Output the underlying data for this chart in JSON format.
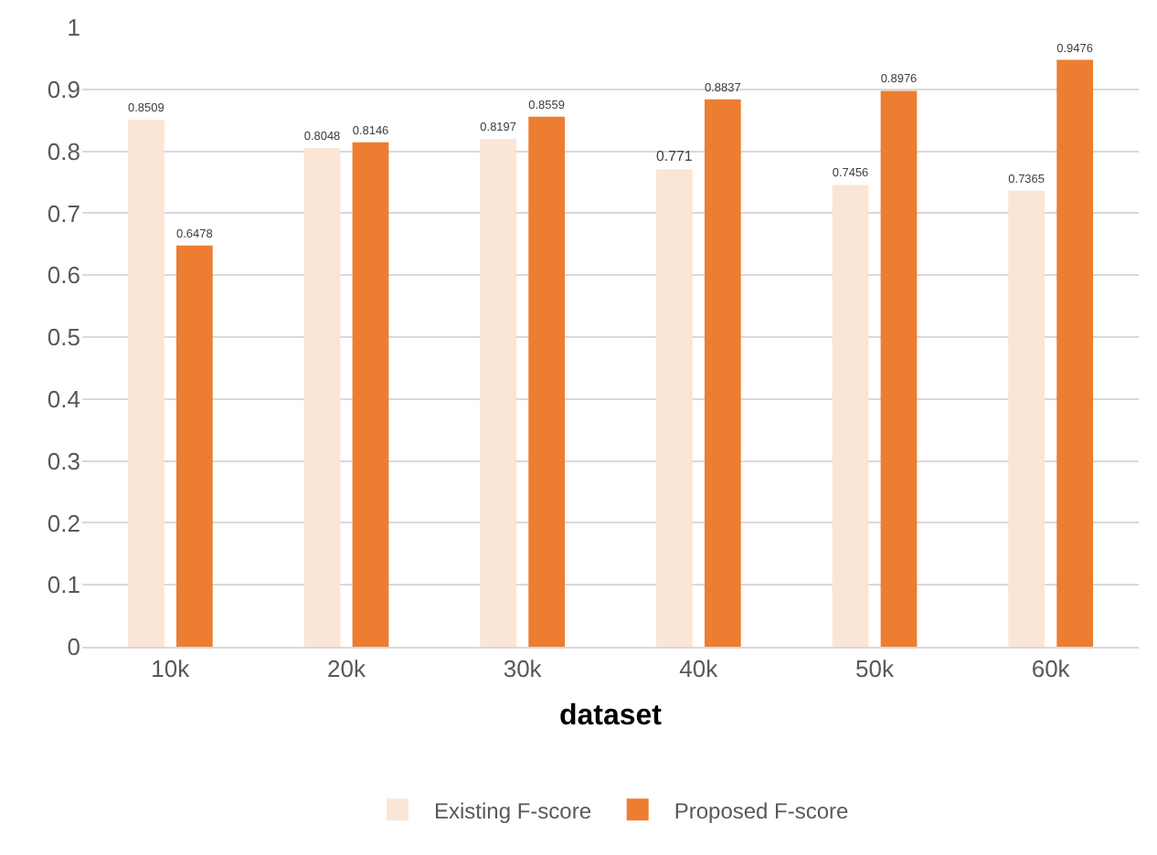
{
  "chart_data": {
    "type": "bar",
    "xlabel": "dataset",
    "categories": [
      "10k",
      "20k",
      "30k",
      "40k",
      "50k",
      "60k"
    ],
    "series": [
      {
        "name": "Existing F-score",
        "color": "#fbe5d6",
        "values": [
          0.8509,
          0.8048,
          0.8197,
          0.771,
          0.7456,
          0.7365
        ]
      },
      {
        "name": "Proposed F-score",
        "color": "#ed7d31",
        "values": [
          0.6478,
          0.8146,
          0.8559,
          0.8837,
          0.8976,
          0.9476
        ]
      }
    ],
    "ylim": [
      0,
      1
    ],
    "yticks": [
      0,
      0.1,
      0.2,
      0.3,
      0.4,
      0.5,
      0.6,
      0.7,
      0.8,
      0.9,
      1
    ],
    "grid": "y",
    "legend": "bottom",
    "data_labels": true
  }
}
